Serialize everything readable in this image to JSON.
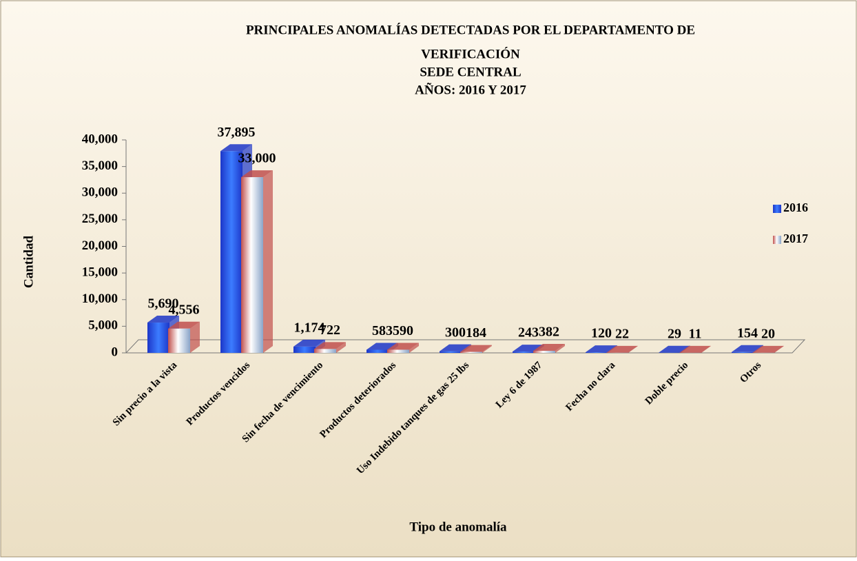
{
  "chart_data": {
    "type": "bar3d",
    "title": [
      "PRINCIPALES ANOMALÍAS DETECTADAS POR EL DEPARTAMENTO DE",
      "VERIFICACIÓN",
      "SEDE CENTRAL",
      "AÑOS: 2016 Y 2017"
    ],
    "x_label": "Tipo de anomalía",
    "y_label": "Cantidad",
    "categories": [
      "Sin precio a la vista",
      "Productos vencidos",
      "Sin fecha de vencimiento",
      "Productos deteriorados",
      "Uso Indebido tanques de gas 25 lbs",
      "Ley 6 de 1987",
      "Fecha no clara",
      "Doble precio",
      "Otros"
    ],
    "series": [
      {
        "name": "2016",
        "color": "#1c36c8",
        "values": [
          5690,
          37895,
          1174,
          583,
          300,
          243,
          120,
          29,
          154
        ],
        "value_labels": [
          "5,690",
          "37,895",
          "1,174",
          "583",
          "300",
          "243",
          "120",
          "29",
          "154"
        ]
      },
      {
        "name": "2017",
        "color": "#c0504d",
        "values": [
          4556,
          33000,
          722,
          590,
          184,
          382,
          22,
          11,
          20
        ],
        "value_labels": [
          "4,556",
          "33,000",
          "722",
          "590",
          "184",
          "382",
          "22",
          "11",
          "20"
        ]
      }
    ],
    "ylim": [
      0,
      40000
    ],
    "yticks": [
      0,
      {
        "value": 5000,
        "label": "5,000"
      },
      {
        "value": 10000,
        "label": "10,000"
      },
      {
        "value": 15000,
        "label": "15,000"
      },
      {
        "value": 20000,
        "label": "20,000"
      },
      {
        "value": 25000,
        "label": "25,000"
      },
      {
        "value": 30000,
        "label": "30,000"
      },
      {
        "value": 35000,
        "label": "35,000"
      },
      {
        "value": 40000,
        "label": "40,000"
      }
    ],
    "legend": "right"
  }
}
